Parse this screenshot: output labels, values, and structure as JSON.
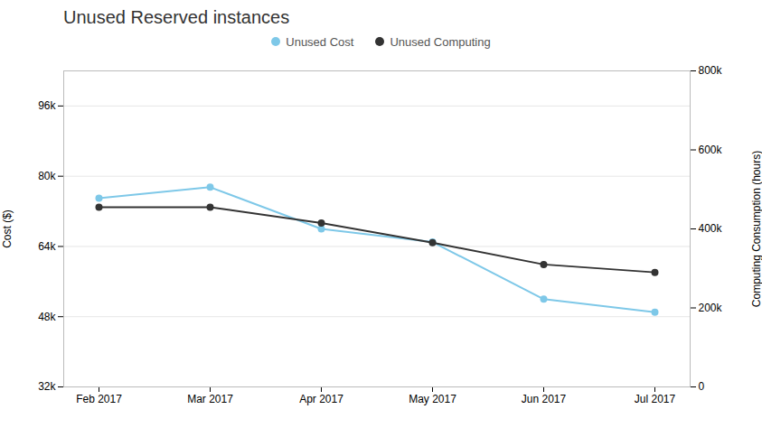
{
  "chart_data": {
    "type": "line",
    "title": "Unused Reserved instances",
    "categories": [
      "Feb 2017",
      "Mar 2017",
      "Apr 2017",
      "May 2017",
      "Jun 2017",
      "Jul 2017"
    ],
    "series": [
      {
        "name": "Unused Cost",
        "color": "#7ec8e8",
        "values": [
          75000,
          77500,
          68000,
          65000,
          52000,
          49000
        ]
      },
      {
        "name": "Unused Computing",
        "color": "#333333",
        "values": [
          455000,
          455000,
          415000,
          365000,
          310000,
          290000
        ],
        "axis": "y2"
      }
    ],
    "ylabel": "Cost ($)",
    "y2label": "Computing Consumption (hours)",
    "ylim": [
      32000,
      104000
    ],
    "yticks": [
      {
        "value": 32000,
        "label": "32k"
      },
      {
        "value": 48000,
        "label": "48k"
      },
      {
        "value": 64000,
        "label": "64k"
      },
      {
        "value": 80000,
        "label": "80k"
      },
      {
        "value": 96000,
        "label": "96k"
      }
    ],
    "y2lim": [
      0,
      800000
    ],
    "y2ticks": [
      0,
      {
        "value": 200000,
        "label": "200k"
      },
      {
        "value": 400000,
        "label": "400k"
      },
      {
        "value": 600000,
        "label": "600k"
      },
      {
        "value": 800000,
        "label": "800k"
      }
    ],
    "grid": true,
    "legend": "top",
    "marker": "circle"
  }
}
